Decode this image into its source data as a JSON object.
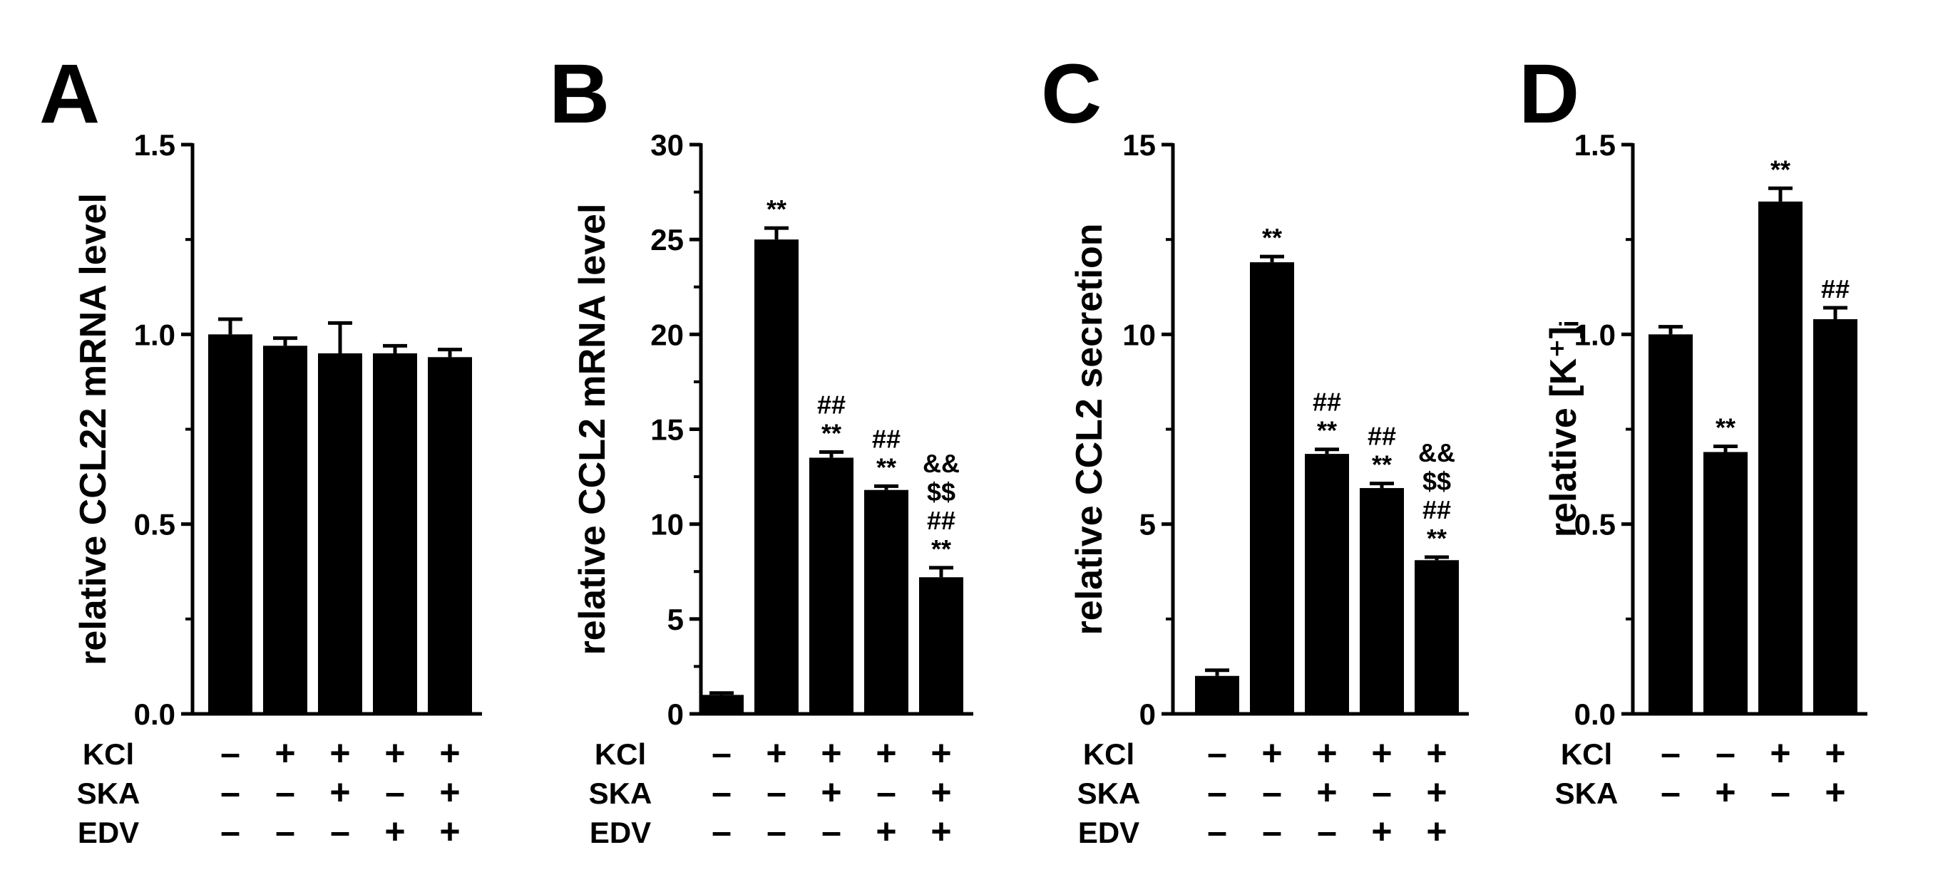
{
  "chart_data": [
    {
      "panel": "A",
      "type": "bar",
      "ylabel": "relative CCL22 mRNA level",
      "ylim": [
        0,
        1.5
      ],
      "yticks": [
        "0.0",
        "0.5",
        "1.0",
        "1.5"
      ],
      "bars": [
        {
          "value": 1.0,
          "error": 0.04,
          "annotations": []
        },
        {
          "value": 0.97,
          "error": 0.02,
          "annotations": []
        },
        {
          "value": 0.95,
          "error": 0.08,
          "annotations": []
        },
        {
          "value": 0.95,
          "error": 0.02,
          "annotations": []
        },
        {
          "value": 0.94,
          "error": 0.02,
          "annotations": []
        }
      ],
      "treatments": [
        {
          "label": "KCl",
          "signs": [
            "–",
            "+",
            "+",
            "+",
            "+"
          ]
        },
        {
          "label": "SKA",
          "signs": [
            "–",
            "–",
            "+",
            "–",
            "+"
          ]
        },
        {
          "label": "EDV",
          "signs": [
            "–",
            "–",
            "–",
            "+",
            "+"
          ]
        }
      ]
    },
    {
      "panel": "B",
      "type": "bar",
      "ylabel": "relative CCL2 mRNA level",
      "ylim": [
        0,
        30
      ],
      "yticks": [
        "0",
        "5",
        "10",
        "15",
        "20",
        "25",
        "30"
      ],
      "bars": [
        {
          "value": 1.0,
          "error": 0.1,
          "annotations": []
        },
        {
          "value": 25.0,
          "error": 0.6,
          "annotations": [
            "**"
          ]
        },
        {
          "value": 13.5,
          "error": 0.3,
          "annotations": [
            "##",
            "**"
          ]
        },
        {
          "value": 11.8,
          "error": 0.2,
          "annotations": [
            "##",
            "**"
          ]
        },
        {
          "value": 7.2,
          "error": 0.5,
          "annotations": [
            "&&",
            "$$",
            "##",
            "**"
          ]
        }
      ],
      "treatments": [
        {
          "label": "KCl",
          "signs": [
            "–",
            "+",
            "+",
            "+",
            "+"
          ]
        },
        {
          "label": "SKA",
          "signs": [
            "–",
            "–",
            "+",
            "–",
            "+"
          ]
        },
        {
          "label": "EDV",
          "signs": [
            "–",
            "–",
            "–",
            "+",
            "+"
          ]
        }
      ]
    },
    {
      "panel": "C",
      "type": "bar",
      "ylabel": "relative CCL2 secretion",
      "ylim": [
        0,
        15
      ],
      "yticks": [
        "0",
        "5",
        "10",
        "15"
      ],
      "bars": [
        {
          "value": 1.0,
          "error": 0.15,
          "annotations": []
        },
        {
          "value": 11.9,
          "error": 0.15,
          "annotations": [
            "**"
          ]
        },
        {
          "value": 6.85,
          "error": 0.12,
          "annotations": [
            "##",
            "**"
          ]
        },
        {
          "value": 5.95,
          "error": 0.12,
          "annotations": [
            "##",
            "**"
          ]
        },
        {
          "value": 4.05,
          "error": 0.08,
          "annotations": [
            "&&",
            "$$",
            "##",
            "**"
          ]
        }
      ],
      "treatments": [
        {
          "label": "KCl",
          "signs": [
            "–",
            "+",
            "+",
            "+",
            "+"
          ]
        },
        {
          "label": "SKA",
          "signs": [
            "–",
            "–",
            "+",
            "–",
            "+"
          ]
        },
        {
          "label": "EDV",
          "signs": [
            "–",
            "–",
            "–",
            "+",
            "+"
          ]
        }
      ]
    },
    {
      "panel": "D",
      "type": "bar",
      "ylabel": "relative [K⁺]ᵢ",
      "ylim": [
        0,
        1.5
      ],
      "yticks": [
        "0.0",
        "0.5",
        "1.0",
        "1.5"
      ],
      "bars": [
        {
          "value": 1.0,
          "error": 0.02,
          "annotations": []
        },
        {
          "value": 0.69,
          "error": 0.015,
          "annotations": [
            "**"
          ]
        },
        {
          "value": 1.35,
          "error": 0.035,
          "annotations": [
            "**"
          ]
        },
        {
          "value": 1.04,
          "error": 0.03,
          "annotations": [
            "##"
          ]
        }
      ],
      "treatments": [
        {
          "label": "KCl",
          "signs": [
            "–",
            "–",
            "+",
            "+"
          ]
        },
        {
          "label": "SKA",
          "signs": [
            "–",
            "+",
            "–",
            "+"
          ]
        }
      ]
    }
  ]
}
